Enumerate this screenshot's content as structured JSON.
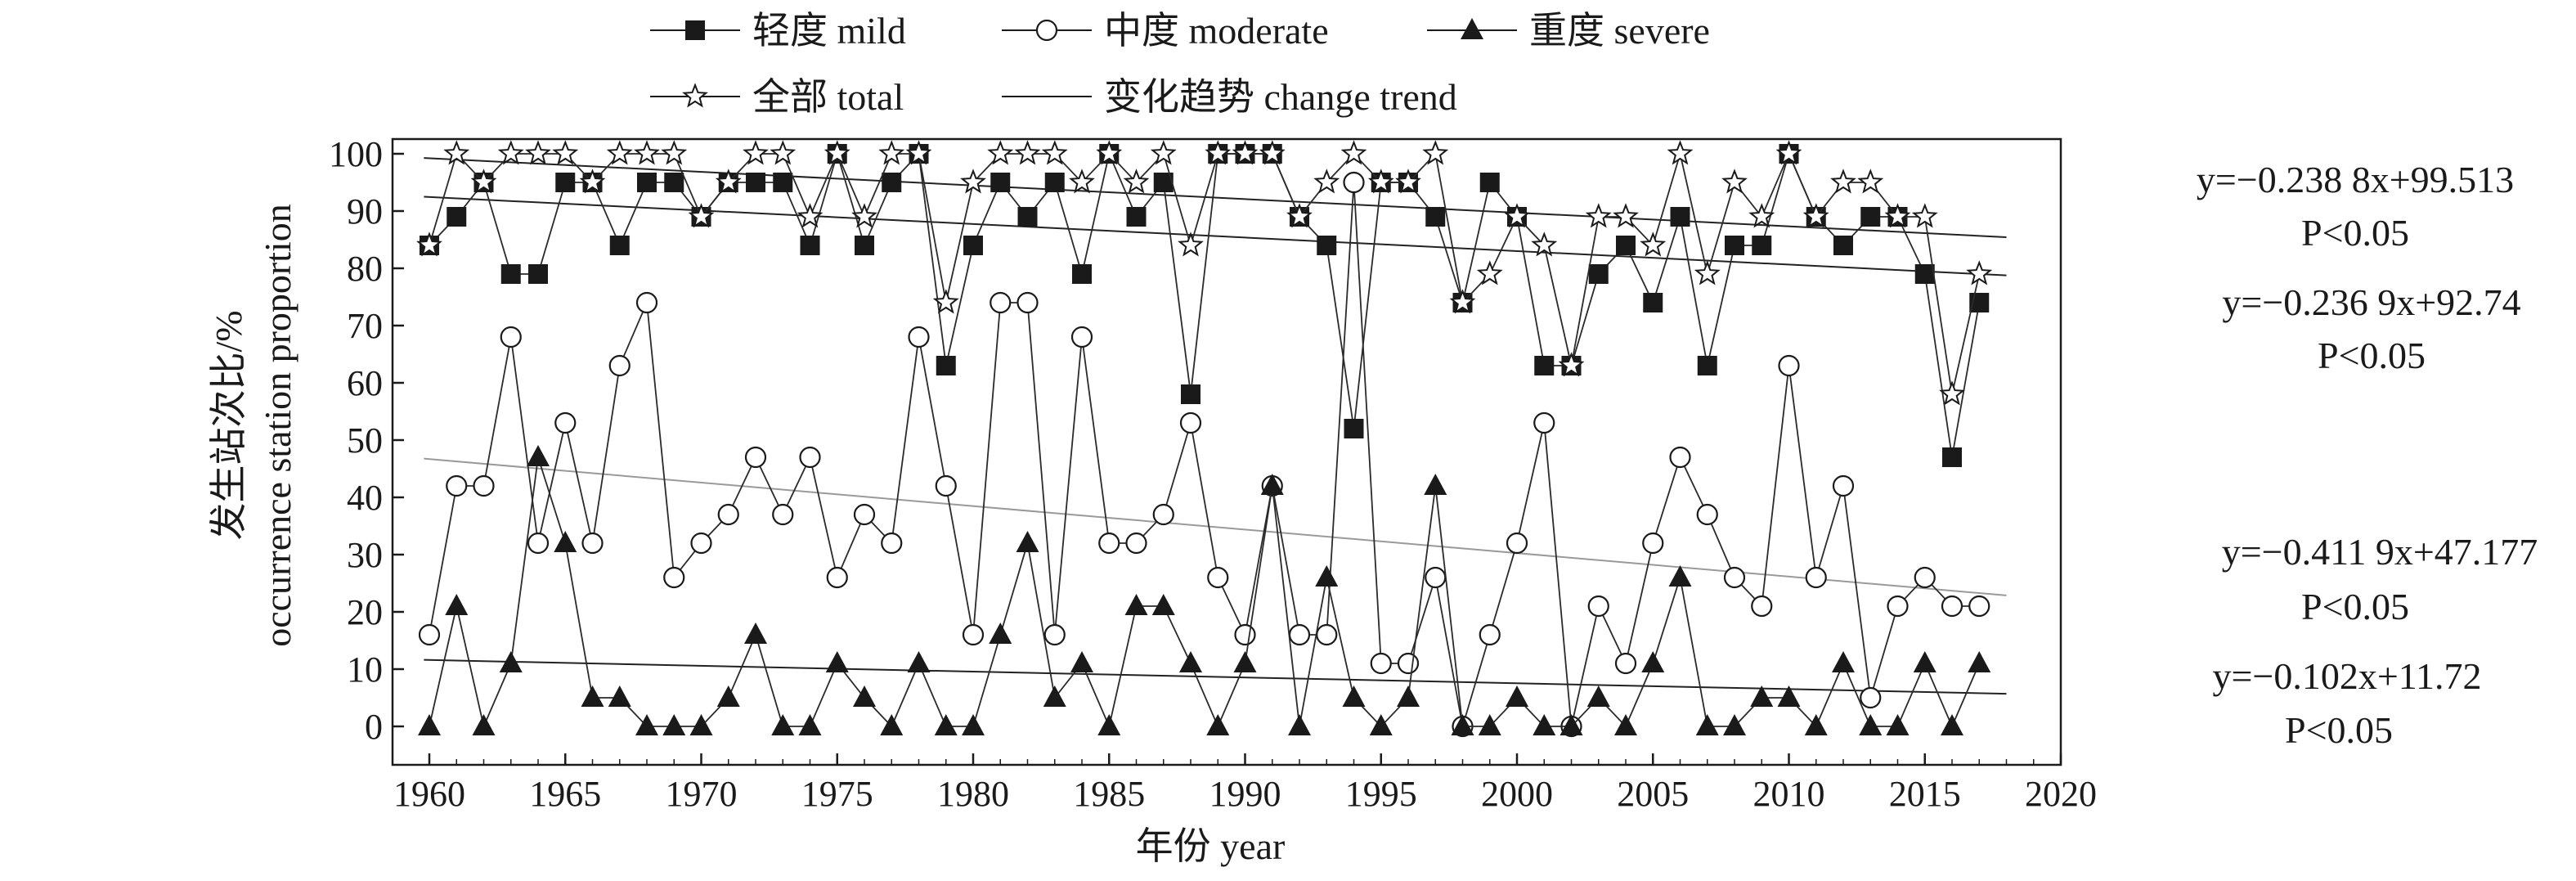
{
  "chart_data": {
    "type": "line",
    "x": [
      1960,
      1961,
      1962,
      1963,
      1964,
      1965,
      1966,
      1967,
      1968,
      1969,
      1970,
      1971,
      1972,
      1973,
      1974,
      1975,
      1976,
      1977,
      1978,
      1979,
      1980,
      1981,
      1982,
      1983,
      1984,
      1985,
      1986,
      1987,
      1988,
      1989,
      1990,
      1991,
      1992,
      1993,
      1994,
      1995,
      1996,
      1997,
      1998,
      1999,
      2000,
      2001,
      2002,
      2003,
      2004,
      2005,
      2006,
      2007,
      2008,
      2009,
      2010,
      2011,
      2012,
      2013,
      2014,
      2015,
      2016,
      2017
    ],
    "series": [
      {
        "key": "mild",
        "name": "轻度 mild",
        "marker": "square-filled",
        "values": [
          84,
          89,
          95,
          79,
          79,
          95,
          95,
          84,
          95,
          95,
          89,
          95,
          95,
          95,
          84,
          100,
          84,
          95,
          100,
          63,
          84,
          95,
          89,
          95,
          79,
          100,
          89,
          95,
          58,
          100,
          100,
          100,
          89,
          84,
          52,
          95,
          95,
          89,
          74,
          95,
          89,
          63,
          63,
          79,
          84,
          74,
          89,
          63,
          84,
          84,
          100,
          89,
          84,
          89,
          89,
          79,
          47,
          74
        ]
      },
      {
        "key": "moderate",
        "name": "中度 moderate",
        "marker": "circle-open",
        "values": [
          16,
          42,
          42,
          68,
          32,
          53,
          32,
          63,
          74,
          26,
          32,
          37,
          47,
          37,
          47,
          26,
          37,
          32,
          68,
          42,
          16,
          74,
          74,
          16,
          68,
          32,
          32,
          37,
          53,
          26,
          16,
          42,
          16,
          16,
          95,
          11,
          11,
          26,
          0,
          16,
          32,
          53,
          0,
          21,
          11,
          32,
          47,
          37,
          26,
          21,
          63,
          26,
          42,
          5,
          21,
          26,
          21,
          21
        ]
      },
      {
        "key": "severe",
        "name": "重度 severe",
        "marker": "triangle-filled",
        "values": [
          0,
          21,
          0,
          11,
          47,
          32,
          5,
          5,
          0,
          0,
          0,
          5,
          16,
          0,
          0,
          11,
          5,
          0,
          11,
          0,
          0,
          16,
          32,
          5,
          11,
          0,
          21,
          21,
          11,
          0,
          11,
          42,
          0,
          26,
          5,
          0,
          5,
          42,
          0,
          0,
          5,
          0,
          0,
          5,
          0,
          11,
          26,
          0,
          0,
          5,
          5,
          0,
          11,
          0,
          0,
          11,
          0,
          11
        ]
      },
      {
        "key": "total",
        "name": "全部 total",
        "marker": "star-open",
        "values": [
          84,
          100,
          95,
          100,
          100,
          100,
          95,
          100,
          100,
          100,
          89,
          95,
          100,
          100,
          89,
          100,
          89,
          100,
          100,
          74,
          95,
          100,
          100,
          100,
          95,
          100,
          95,
          100,
          84,
          100,
          100,
          100,
          89,
          95,
          100,
          95,
          95,
          100,
          74,
          79,
          89,
          84,
          63,
          89,
          89,
          84,
          100,
          79,
          95,
          89,
          100,
          89,
          95,
          95,
          89,
          89,
          58,
          79
        ]
      }
    ],
    "trends": [
      {
        "series": "total",
        "slope": -0.2388,
        "intercept": 99.513,
        "equation": "y=−0.238 8x+99.513",
        "p": "P<0.05",
        "color": "#222222"
      },
      {
        "series": "mild",
        "slope": -0.2369,
        "intercept": 92.74,
        "equation": "y=−0.236 9x+92.74",
        "p": "P<0.05",
        "color": "#222222"
      },
      {
        "series": "moderate",
        "slope": -0.4119,
        "intercept": 47.177,
        "equation": "y=−0.411 9x+47.177",
        "p": "P<0.05",
        "color": "#9a9a9a"
      },
      {
        "series": "severe",
        "slope": -0.102,
        "intercept": 11.72,
        "equation": "y=−0.102x+11.72",
        "p": "P<0.05",
        "color": "#222222"
      }
    ],
    "trend_legend": "变化趋势 change trend",
    "xlabel": "年份 year",
    "ylabel_cn": "发生站次比/%",
    "ylabel_en": "occurrence station proportion",
    "xlim": [
      1958,
      2020
    ],
    "ylim": [
      -5,
      102
    ],
    "xticks": [
      1960,
      1965,
      1970,
      1975,
      1980,
      1985,
      1990,
      1995,
      2000,
      2005,
      2010,
      2015,
      2020
    ],
    "yticks": [
      0,
      10,
      20,
      30,
      40,
      50,
      60,
      70,
      80,
      90,
      100
    ],
    "legend_position": "top"
  }
}
